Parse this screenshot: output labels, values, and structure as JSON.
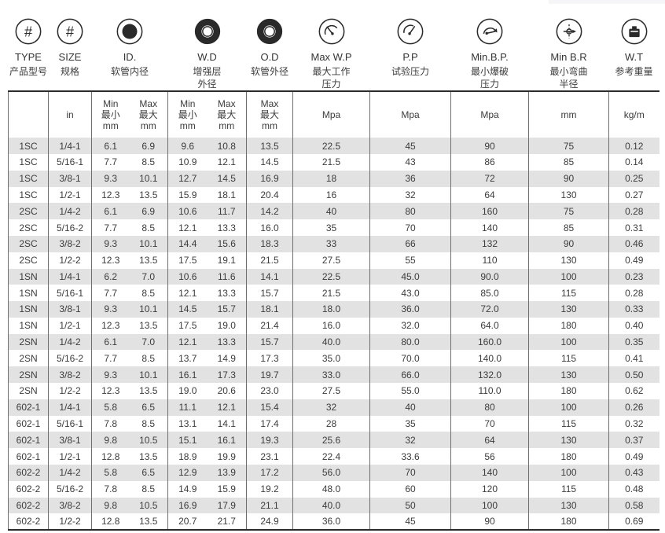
{
  "page": {
    "top_edge_bar_color": "#f6f6f8",
    "row_shade_color": "#e2e2e2",
    "grid_color": "#6e6e6e",
    "strong_line_color": "#2b2b2b",
    "text_color": "#3c3c3c"
  },
  "header": {
    "groups": [
      {
        "icon": "hash-circle-icon",
        "en": "TYPE",
        "zh": "产品型号"
      },
      {
        "icon": "hash-circle-icon",
        "en": "SIZE",
        "zh": "规格"
      },
      {
        "icon": "inner-diameter-icon",
        "en": "ID.",
        "zh": "软管内径"
      },
      {
        "icon": "reinforce-diameter-icon",
        "en": "W.D",
        "zh": "增强层\n外径"
      },
      {
        "icon": "outer-diameter-icon",
        "en": "O.D",
        "zh": "软管外径"
      },
      {
        "icon": "pressure-gauge-icon",
        "en": "Max W.P",
        "zh": "最大工作\n压力"
      },
      {
        "icon": "proof-gauge-icon",
        "en": "P.P",
        "zh": "试验压力"
      },
      {
        "icon": "burst-gauge-icon",
        "en": "Min.B.P.",
        "zh": "最小爆破\n压力"
      },
      {
        "icon": "bend-radius-icon",
        "en": "Min B.R",
        "zh": "最小弯曲\n半径"
      },
      {
        "icon": "weight-icon",
        "en": "W.T",
        "zh": "参考重量"
      }
    ],
    "units": [
      "",
      "in",
      "Min\n最小\nmm",
      "Max\n最大\nmm",
      "Min\n最小\nmm",
      "Max\n最大\nmm",
      "Max\n最大\nmm",
      "Mpa",
      "Mpa",
      "Mpa",
      "mm",
      "kg/m"
    ]
  },
  "table": {
    "row_fields": [
      "type",
      "size",
      "id_min",
      "id_max",
      "wd_min",
      "wd_max",
      "od_max",
      "max_wp",
      "pp",
      "min_bp",
      "min_br",
      "wt"
    ],
    "rows": [
      [
        "1SC",
        "1/4-1",
        "6.1",
        "6.9",
        "9.6",
        "10.8",
        "13.5",
        "22.5",
        "45",
        "90",
        "75",
        "0.12"
      ],
      [
        "1SC",
        "5/16-1",
        "7.7",
        "8.5",
        "10.9",
        "12.1",
        "14.5",
        "21.5",
        "43",
        "86",
        "85",
        "0.14"
      ],
      [
        "1SC",
        "3/8-1",
        "9.3",
        "10.1",
        "12.7",
        "14.5",
        "16.9",
        "18",
        "36",
        "72",
        "90",
        "0.25"
      ],
      [
        "1SC",
        "1/2-1",
        "12.3",
        "13.5",
        "15.9",
        "18.1",
        "20.4",
        "16",
        "32",
        "64",
        "130",
        "0.27"
      ],
      [
        "2SC",
        "1/4-2",
        "6.1",
        "6.9",
        "10.6",
        "11.7",
        "14.2",
        "40",
        "80",
        "160",
        "75",
        "0.28"
      ],
      [
        "2SC",
        "5/16-2",
        "7.7",
        "8.5",
        "12.1",
        "13.3",
        "16.0",
        "35",
        "70",
        "140",
        "85",
        "0.31"
      ],
      [
        "2SC",
        "3/8-2",
        "9.3",
        "10.1",
        "14.4",
        "15.6",
        "18.3",
        "33",
        "66",
        "132",
        "90",
        "0.46"
      ],
      [
        "2SC",
        "1/2-2",
        "12.3",
        "13.5",
        "17.5",
        "19.1",
        "21.5",
        "27.5",
        "55",
        "110",
        "130",
        "0.49"
      ],
      [
        "1SN",
        "1/4-1",
        "6.2",
        "7.0",
        "10.6",
        "11.6",
        "14.1",
        "22.5",
        "45.0",
        "90.0",
        "100",
        "0.23"
      ],
      [
        "1SN",
        "5/16-1",
        "7.7",
        "8.5",
        "12.1",
        "13.3",
        "15.7",
        "21.5",
        "43.0",
        "85.0",
        "115",
        "0.28"
      ],
      [
        "1SN",
        "3/8-1",
        "9.3",
        "10.1",
        "14.5",
        "15.7",
        "18.1",
        "18.0",
        "36.0",
        "72.0",
        "130",
        "0.33"
      ],
      [
        "1SN",
        "1/2-1",
        "12.3",
        "13.5",
        "17.5",
        "19.0",
        "21.4",
        "16.0",
        "32.0",
        "64.0",
        "180",
        "0.40"
      ],
      [
        "2SN",
        "1/4-2",
        "6.1",
        "7.0",
        "12.1",
        "13.3",
        "15.7",
        "40.0",
        "80.0",
        "160.0",
        "100",
        "0.35"
      ],
      [
        "2SN",
        "5/16-2",
        "7.7",
        "8.5",
        "13.7",
        "14.9",
        "17.3",
        "35.0",
        "70.0",
        "140.0",
        "115",
        "0.41"
      ],
      [
        "2SN",
        "3/8-2",
        "9.3",
        "10.1",
        "16.1",
        "17.3",
        "19.7",
        "33.0",
        "66.0",
        "132.0",
        "130",
        "0.50"
      ],
      [
        "2SN",
        "1/2-2",
        "12.3",
        "13.5",
        "19.0",
        "20.6",
        "23.0",
        "27.5",
        "55.0",
        "110.0",
        "180",
        "0.62"
      ],
      [
        "602-1",
        "1/4-1",
        "5.8",
        "6.5",
        "11.1",
        "12.1",
        "15.4",
        "32",
        "40",
        "80",
        "100",
        "0.26"
      ],
      [
        "602-1",
        "5/16-1",
        "7.8",
        "8.5",
        "13.1",
        "14.1",
        "17.4",
        "28",
        "35",
        "70",
        "115",
        "0.32"
      ],
      [
        "602-1",
        "3/8-1",
        "9.8",
        "10.5",
        "15.1",
        "16.1",
        "19.3",
        "25.6",
        "32",
        "64",
        "130",
        "0.37"
      ],
      [
        "602-1",
        "1/2-1",
        "12.8",
        "13.5",
        "18.9",
        "19.9",
        "23.1",
        "22.4",
        "33.6",
        "56",
        "180",
        "0.49"
      ],
      [
        "602-2",
        "1/4-2",
        "5.8",
        "6.5",
        "12.9",
        "13.9",
        "17.2",
        "56.0",
        "70",
        "140",
        "100",
        "0.43"
      ],
      [
        "602-2",
        "5/16-2",
        "7.8",
        "8.5",
        "14.9",
        "15.9",
        "19.2",
        "48.0",
        "60",
        "120",
        "115",
        "0.48"
      ],
      [
        "602-2",
        "3/8-2",
        "9.8",
        "10.5",
        "16.9",
        "17.9",
        "21.1",
        "40.0",
        "50",
        "100",
        "130",
        "0.58"
      ],
      [
        "602-2",
        "1/2-2",
        "12.8",
        "13.5",
        "20.7",
        "21.7",
        "24.9",
        "36.0",
        "45",
        "90",
        "180",
        "0.69"
      ]
    ]
  }
}
